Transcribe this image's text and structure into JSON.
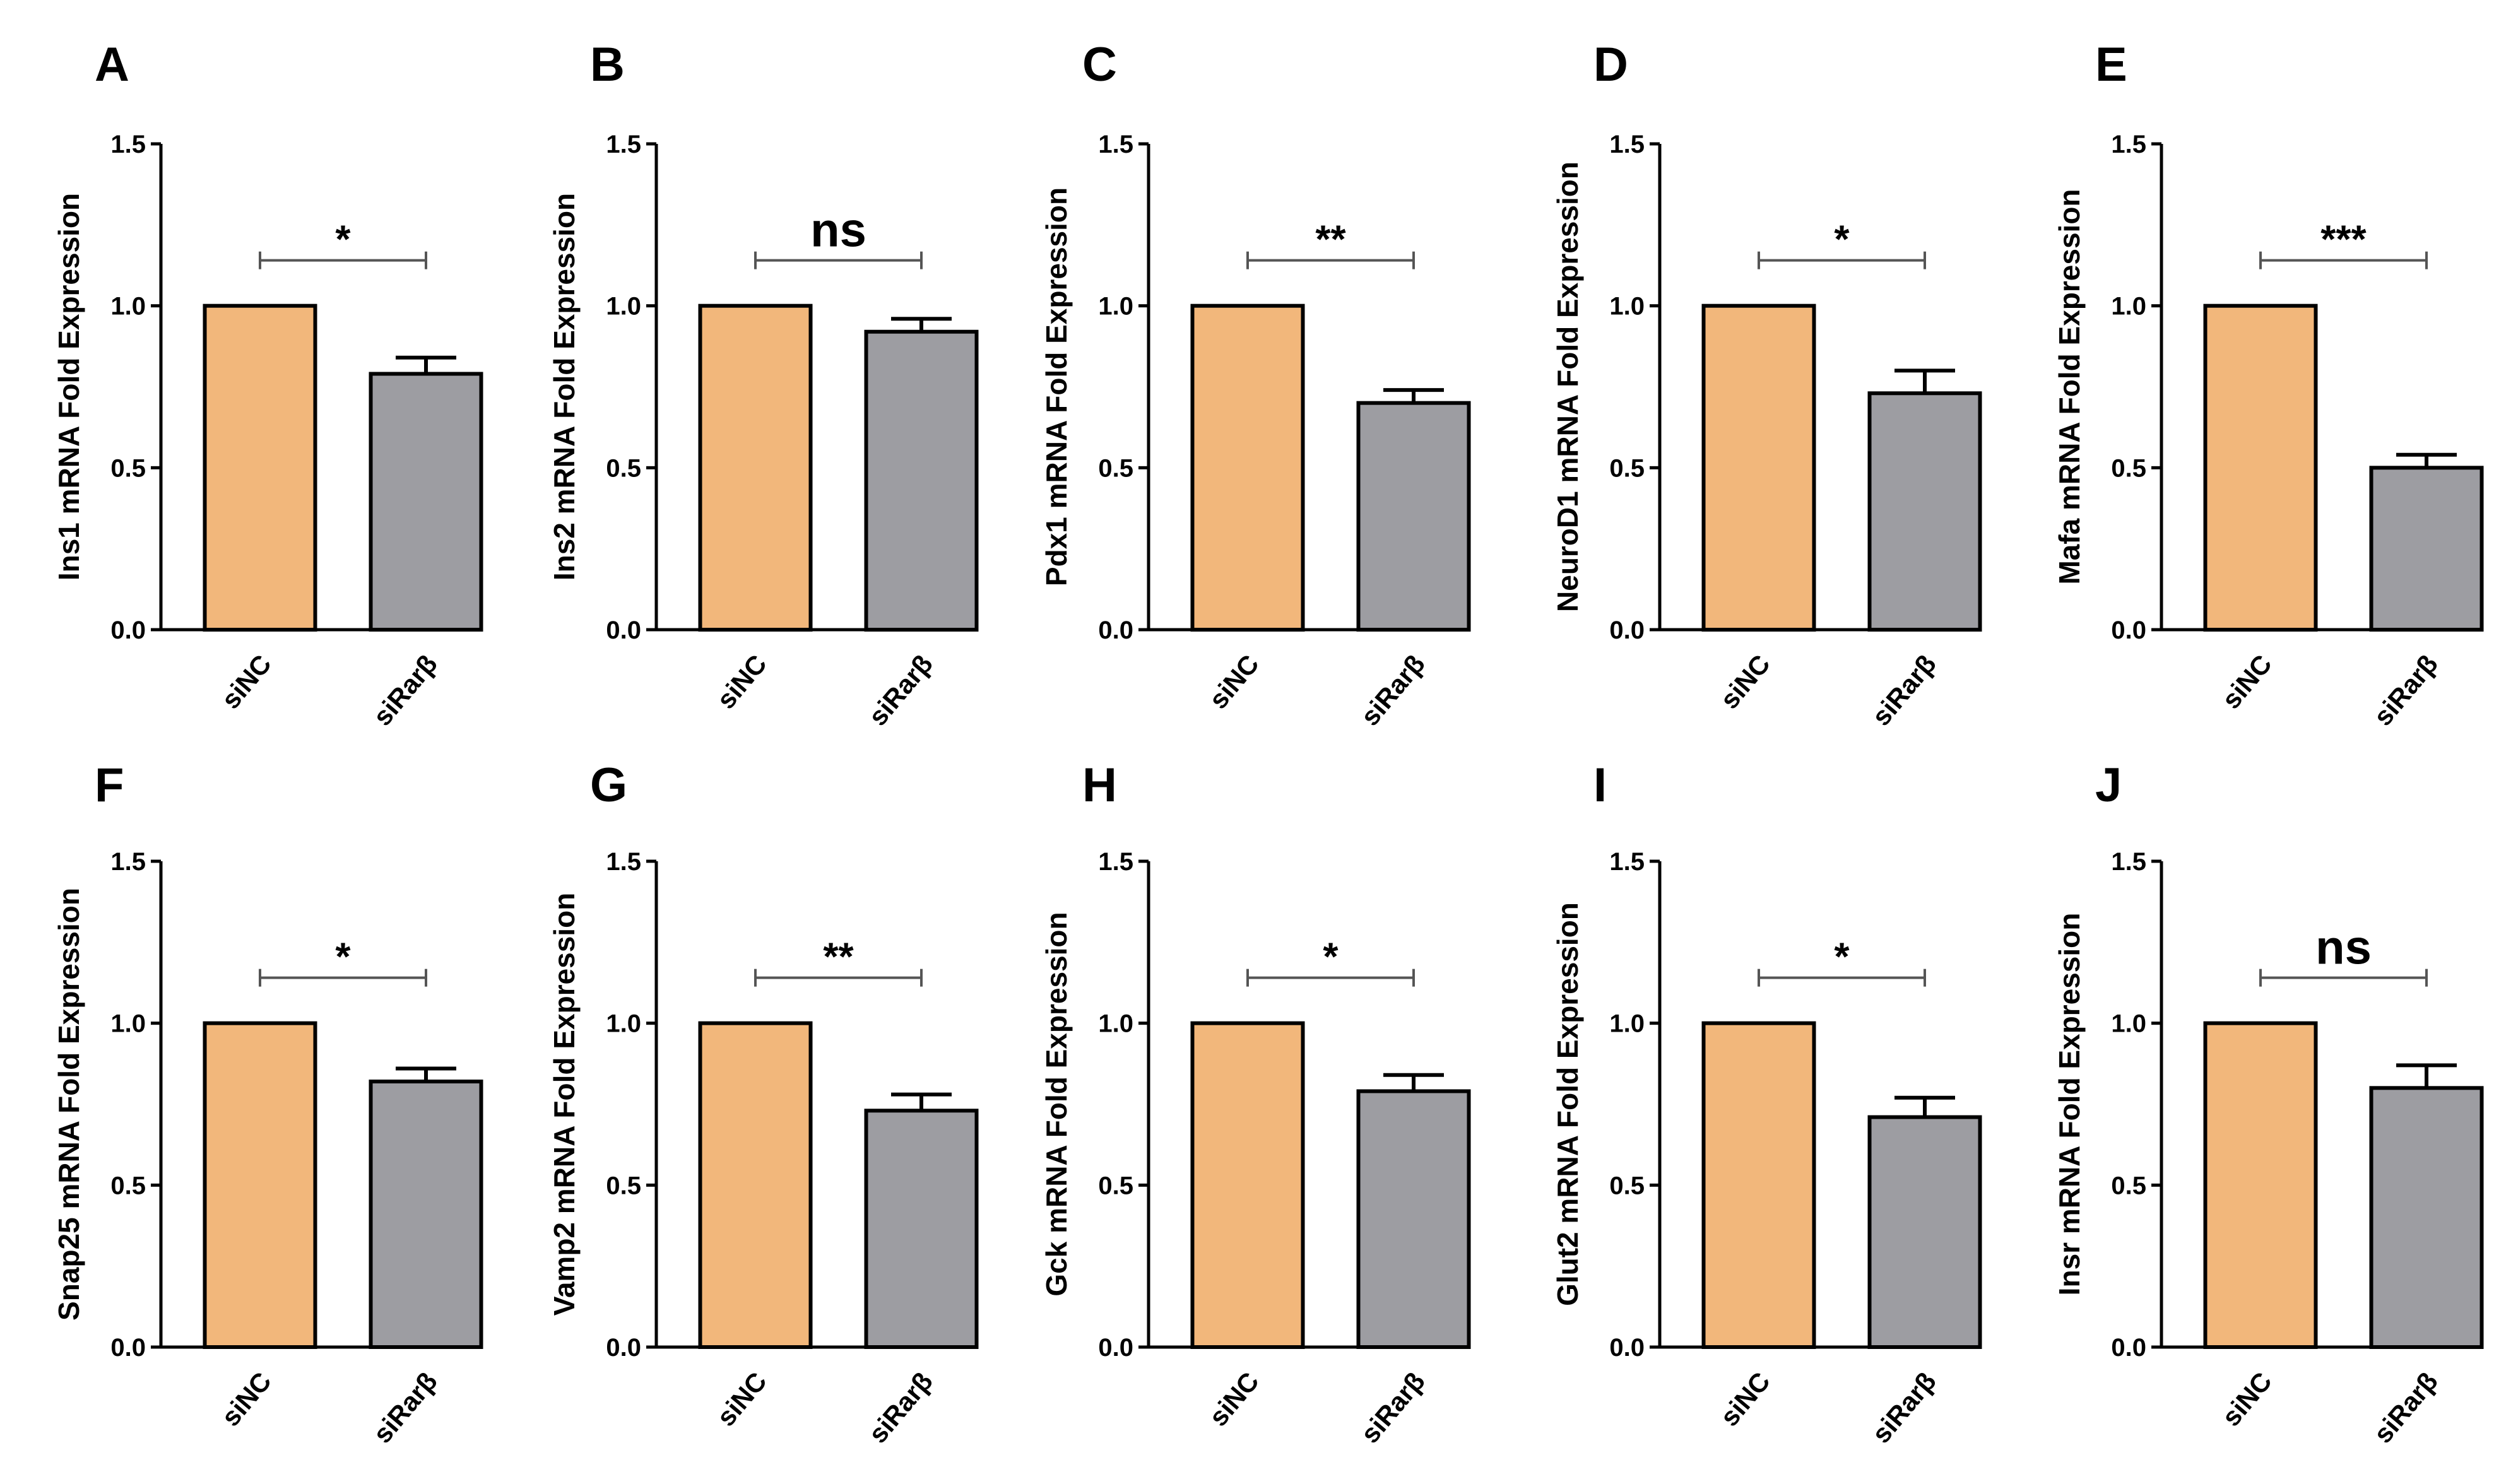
{
  "chart_data": [
    {
      "panel": "A",
      "type": "bar",
      "ylabel": "Ins1 mRNA Fold Expression",
      "categories": [
        "siNC",
        "siRarβ"
      ],
      "values": [
        1.0,
        0.79
      ],
      "errors": [
        0,
        0.05
      ],
      "ylim": [
        0,
        1.5
      ],
      "yticks": [
        "0.0",
        "0.5",
        "1.0",
        "1.5"
      ],
      "significance": "*",
      "colors": [
        "#f2b77b",
        "#9d9da2"
      ]
    },
    {
      "panel": "B",
      "type": "bar",
      "ylabel": "Ins2 mRNA Fold Expression",
      "categories": [
        "siNC",
        "siRarβ"
      ],
      "values": [
        1.0,
        0.92
      ],
      "errors": [
        0,
        0.04
      ],
      "ylim": [
        0,
        1.5
      ],
      "yticks": [
        "0.0",
        "0.5",
        "1.0",
        "1.5"
      ],
      "significance": "ns",
      "colors": [
        "#f2b77b",
        "#9d9da2"
      ]
    },
    {
      "panel": "C",
      "type": "bar",
      "ylabel": "Pdx1 mRNA Fold Expression",
      "categories": [
        "siNC",
        "siRarβ"
      ],
      "values": [
        1.0,
        0.7
      ],
      "errors": [
        0,
        0.04
      ],
      "ylim": [
        0,
        1.5
      ],
      "yticks": [
        "0.0",
        "0.5",
        "1.0",
        "1.5"
      ],
      "significance": "**",
      "colors": [
        "#f2b77b",
        "#9d9da2"
      ]
    },
    {
      "panel": "D",
      "type": "bar",
      "ylabel": "NeuroD1 mRNA Fold Expression",
      "categories": [
        "siNC",
        "siRarβ"
      ],
      "values": [
        1.0,
        0.73
      ],
      "errors": [
        0,
        0.07
      ],
      "ylim": [
        0,
        1.5
      ],
      "yticks": [
        "0.0",
        "0.5",
        "1.0",
        "1.5"
      ],
      "significance": "*",
      "colors": [
        "#f2b77b",
        "#9d9da2"
      ]
    },
    {
      "panel": "E",
      "type": "bar",
      "ylabel": "Mafa mRNA Fold Expression",
      "categories": [
        "siNC",
        "siRarβ"
      ],
      "values": [
        1.0,
        0.5
      ],
      "errors": [
        0,
        0.04
      ],
      "ylim": [
        0,
        1.5
      ],
      "yticks": [
        "0.0",
        "0.5",
        "1.0",
        "1.5"
      ],
      "significance": "***",
      "colors": [
        "#f2b77b",
        "#9d9da2"
      ]
    },
    {
      "panel": "F",
      "type": "bar",
      "ylabel": "Snap25 mRNA Fold Expression",
      "categories": [
        "siNC",
        "siRarβ"
      ],
      "values": [
        1.0,
        0.82
      ],
      "errors": [
        0,
        0.04
      ],
      "ylim": [
        0,
        1.5
      ],
      "yticks": [
        "0.0",
        "0.5",
        "1.0",
        "1.5"
      ],
      "significance": "*",
      "colors": [
        "#f2b77b",
        "#9d9da2"
      ]
    },
    {
      "panel": "G",
      "type": "bar",
      "ylabel": "Vamp2 mRNA Fold Expression",
      "categories": [
        "siNC",
        "siRarβ"
      ],
      "values": [
        1.0,
        0.73
      ],
      "errors": [
        0,
        0.05
      ],
      "ylim": [
        0,
        1.5
      ],
      "yticks": [
        "0.0",
        "0.5",
        "1.0",
        "1.5"
      ],
      "significance": "**",
      "colors": [
        "#f2b77b",
        "#9d9da2"
      ]
    },
    {
      "panel": "H",
      "type": "bar",
      "ylabel": "Gck mRNA Fold Expression",
      "categories": [
        "siNC",
        "siRarβ"
      ],
      "values": [
        1.0,
        0.79
      ],
      "errors": [
        0,
        0.05
      ],
      "ylim": [
        0,
        1.5
      ],
      "yticks": [
        "0.0",
        "0.5",
        "1.0",
        "1.5"
      ],
      "significance": "*",
      "colors": [
        "#f2b77b",
        "#9d9da2"
      ]
    },
    {
      "panel": "I",
      "type": "bar",
      "ylabel": "Glut2 mRNA Fold Expression",
      "categories": [
        "siNC",
        "siRarβ"
      ],
      "values": [
        1.0,
        0.71
      ],
      "errors": [
        0,
        0.06
      ],
      "ylim": [
        0,
        1.5
      ],
      "yticks": [
        "0.0",
        "0.5",
        "1.0",
        "1.5"
      ],
      "significance": "*",
      "colors": [
        "#f2b77b",
        "#9d9da2"
      ]
    },
    {
      "panel": "J",
      "type": "bar",
      "ylabel": "Insr mRNA Fold Expression",
      "categories": [
        "siNC",
        "siRarβ"
      ],
      "values": [
        1.0,
        0.8
      ],
      "errors": [
        0,
        0.07
      ],
      "ylim": [
        0,
        1.5
      ],
      "yticks": [
        "0.0",
        "0.5",
        "1.0",
        "1.5"
      ],
      "significance": "ns",
      "colors": [
        "#f2b77b",
        "#9d9da2"
      ]
    }
  ]
}
